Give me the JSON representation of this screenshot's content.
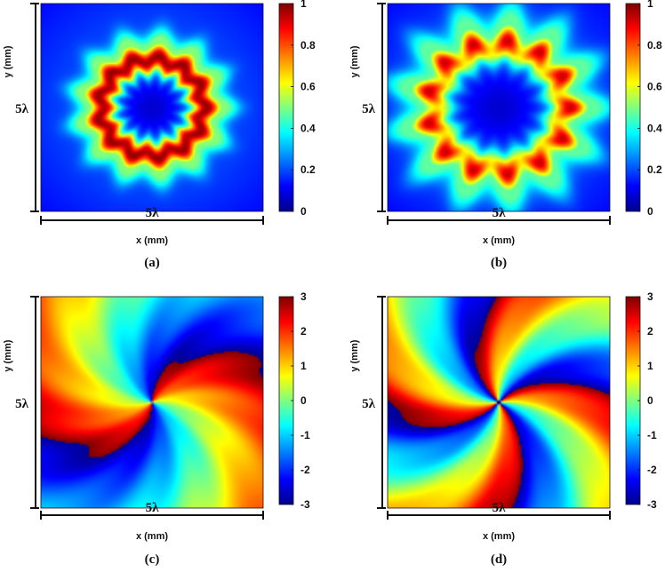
{
  "colors": {
    "colormap": [
      "#00008f",
      "#0000ff",
      "#00ffff",
      "#ffff00",
      "#ff0000",
      "#800000"
    ]
  },
  "chart_data": [
    {
      "type": "heatmap",
      "panel_label": "(a)",
      "xlabel": "x (mm)",
      "ylabel": "y (mm)",
      "x_extent_label": "5λ",
      "y_extent_label": "5λ",
      "colorbar": {
        "range": [
          0,
          1
        ],
        "ticks": [
          0,
          0.2,
          0.4,
          0.6,
          0.8,
          1
        ],
        "tick_labels": [
          "0",
          "0.2",
          "0.4",
          "0.6",
          "0.8",
          "1"
        ]
      },
      "field": {
        "kind": "amplitude",
        "ring_radius_fraction": 0.23,
        "ring_width_fraction": 0.07,
        "ring_peak": 1.0,
        "center_value": 0.05,
        "background_value": 0.18,
        "petals": 13,
        "petal_modulation": 0.06
      }
    },
    {
      "type": "heatmap",
      "panel_label": "(b)",
      "xlabel": "x (mm)",
      "ylabel": "y (mm)",
      "x_extent_label": "5λ",
      "y_extent_label": "5λ",
      "colorbar": {
        "range": [
          0,
          1
        ],
        "ticks": [
          0,
          0.2,
          0.4,
          0.6,
          0.8,
          1
        ],
        "tick_labels": [
          "0",
          "0.2",
          "0.4",
          "0.6",
          "0.8",
          "1"
        ]
      },
      "field": {
        "kind": "amplitude",
        "ring_radius_fraction": 0.3,
        "ring_width_fraction": 0.085,
        "ring_peak": 0.95,
        "center_value": 0.05,
        "background_value": 0.18,
        "petals": 13,
        "petal_modulation": 0.35
      }
    },
    {
      "type": "heatmap",
      "panel_label": "(c)",
      "xlabel": "x (mm)",
      "ylabel": "y (mm)",
      "x_extent_label": "5λ",
      "y_extent_label": "5λ",
      "colorbar": {
        "range": [
          -3,
          3
        ],
        "ticks": [
          -3,
          -2,
          -1,
          0,
          1,
          2,
          3
        ],
        "tick_labels": [
          "-3",
          "-2",
          "-1",
          "0",
          "1",
          "2",
          "3"
        ]
      },
      "field": {
        "kind": "phase",
        "topological_charge": 2,
        "radial_twist": 4.8,
        "wiggle_count": 13,
        "wiggle_amplitude": 0.22
      }
    },
    {
      "type": "heatmap",
      "panel_label": "(d)",
      "xlabel": "x (mm)",
      "ylabel": "y (mm)",
      "x_extent_label": "5λ",
      "y_extent_label": "5λ",
      "colorbar": {
        "range": [
          -3,
          3
        ],
        "ticks": [
          -3,
          -2,
          -1,
          0,
          1,
          2,
          3
        ],
        "tick_labels": [
          "-3",
          "-2",
          "-1",
          "0",
          "1",
          "2",
          "3"
        ]
      },
      "field": {
        "kind": "phase",
        "topological_charge": 4,
        "radial_twist": 5.8,
        "wiggle_count": 13,
        "wiggle_amplitude": 0.28
      }
    }
  ]
}
